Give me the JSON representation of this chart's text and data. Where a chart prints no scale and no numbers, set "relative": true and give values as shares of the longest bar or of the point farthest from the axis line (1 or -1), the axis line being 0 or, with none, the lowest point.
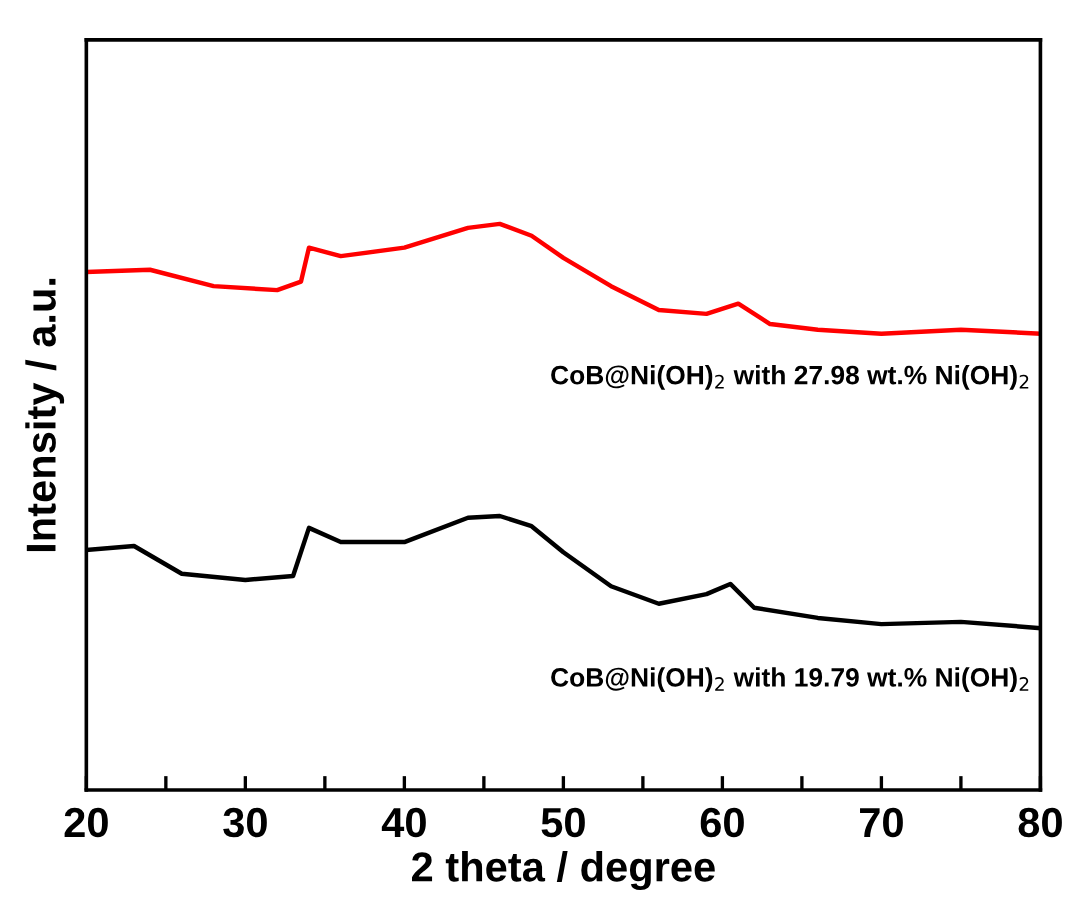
{
  "chart_data": {
    "type": "line",
    "relative": true,
    "xlabel": "2 theta / degree",
    "ylabel": "Intensity / a.u.",
    "xlim": [
      20,
      80
    ],
    "xticks": [
      20,
      {
        "value": 25,
        "label": null
      },
      30,
      {
        "value": 35,
        "label": null
      },
      40,
      {
        "value": 45,
        "label": null
      },
      50,
      {
        "value": 55,
        "label": null
      },
      60,
      {
        "value": 65,
        "label": null
      },
      70,
      {
        "value": 75,
        "label": null
      },
      80
    ],
    "tick_labels": "x",
    "grid": false,
    "legend": false,
    "series": [
      {
        "color": "#ff0000",
        "x": [
          20,
          24,
          28,
          32,
          33.5,
          34,
          36,
          40,
          44,
          46,
          48,
          50,
          53,
          56,
          59,
          61,
          63,
          66,
          70,
          75,
          80
        ],
        "values": [
          0.915,
          0.919,
          0.89,
          0.883,
          0.898,
          0.958,
          0.943,
          0.958,
          0.993,
          1.0,
          0.979,
          0.94,
          0.89,
          0.848,
          0.841,
          0.859,
          0.823,
          0.813,
          0.806,
          0.813,
          0.806
        ]
      },
      {
        "color": "#000000",
        "x": [
          20,
          23,
          26,
          30,
          33,
          34,
          36,
          40,
          44,
          46,
          48,
          50,
          53,
          56,
          59,
          60.5,
          62,
          66,
          70,
          75,
          80
        ],
        "values": [
          0.424,
          0.431,
          0.382,
          0.371,
          0.378,
          0.463,
          0.438,
          0.438,
          0.481,
          0.484,
          0.466,
          0.42,
          0.36,
          0.329,
          0.346,
          0.364,
          0.322,
          0.304,
          0.293,
          0.297,
          0.286
        ]
      }
    ],
    "annotations": [
      "CoB@Ni(OH)$_{2}$ with 27.98 wt.% Ni(OH)$_{2}$",
      "CoB@Ni(OH)$_{2}$ with 19.79 wt.% Ni(OH)$_{2}$"
    ]
  }
}
